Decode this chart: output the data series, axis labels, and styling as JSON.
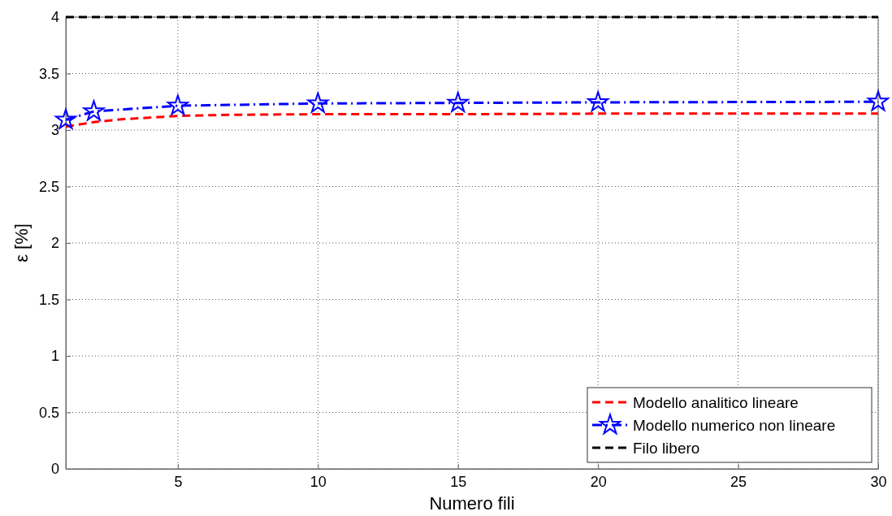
{
  "chart_data": {
    "type": "line",
    "xlabel": "Numero fili",
    "ylabel": "ε [%]",
    "xlim": [
      1,
      30
    ],
    "xticks": [
      5,
      10,
      15,
      20,
      25,
      30
    ],
    "ylim": [
      0,
      4
    ],
    "yticks": [
      0,
      0.5,
      1,
      1.5,
      2,
      2.5,
      3,
      3.5,
      4
    ],
    "grid": true,
    "legend": "bottom right",
    "series": [
      {
        "name": "Modello analitico lineare",
        "color": "#ff0000",
        "line_style": "dashed",
        "marker": "none",
        "x": [
          1,
          2,
          3,
          4,
          5,
          7,
          10,
          15,
          20,
          30
        ],
        "values": [
          3.03,
          3.07,
          3.095,
          3.11,
          3.125,
          3.135,
          3.14,
          3.14,
          3.145,
          3.145
        ]
      },
      {
        "name": "Modello numerico non lineare",
        "color": "#0000ff",
        "line_style": "dashdot",
        "marker": "star",
        "x": [
          1,
          2,
          5,
          10,
          15,
          20,
          30
        ],
        "values": [
          3.09,
          3.165,
          3.215,
          3.235,
          3.24,
          3.245,
          3.25
        ]
      },
      {
        "name": "Filo libero",
        "color": "#000000",
        "line_style": "dashed",
        "marker": "none",
        "x": [
          1,
          30
        ],
        "values": [
          4,
          4
        ]
      }
    ]
  }
}
